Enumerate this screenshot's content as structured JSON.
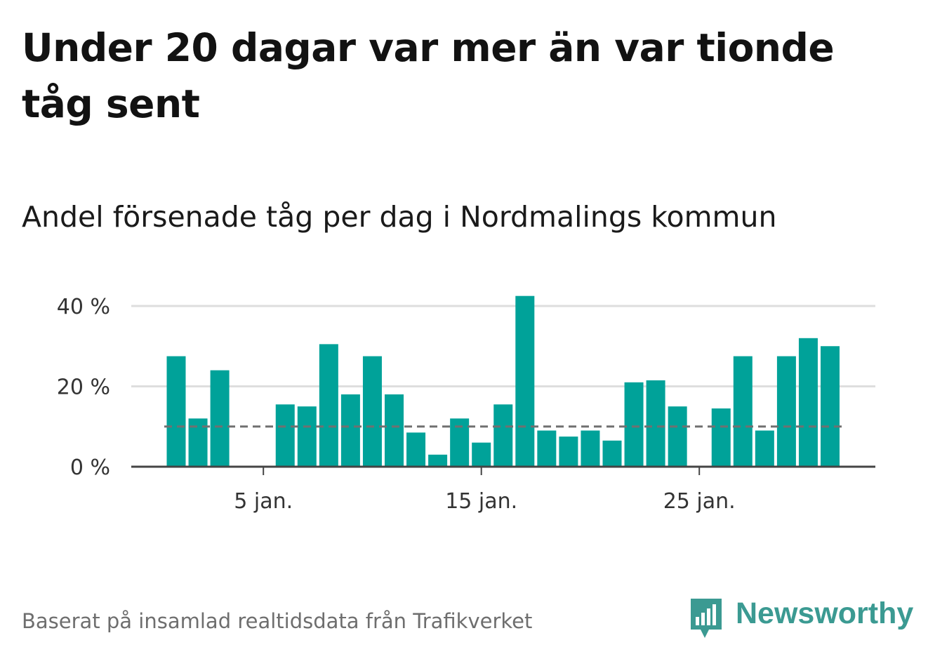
{
  "title": "Under 20 dagar var mer än var tionde tåg sent",
  "subtitle": "Andel försenade tåg per dag i Nordmalings kommun",
  "footnote": "Baserat på insamlad realtidsdata från Trafikverket",
  "brand": {
    "name": "Newsworthy",
    "color": "#3b9a92"
  },
  "colors": {
    "bar": "#00a299",
    "grid": "#dedede",
    "axis": "#444444",
    "reference": "#707070"
  },
  "chart_data": {
    "type": "bar",
    "x": [
      1,
      2,
      3,
      4,
      5,
      6,
      7,
      8,
      9,
      10,
      11,
      12,
      13,
      14,
      15,
      16,
      17,
      18,
      19,
      20,
      21,
      22,
      23,
      24,
      25,
      26,
      27,
      28,
      29,
      30,
      31
    ],
    "values": [
      27.5,
      12,
      24,
      0,
      0,
      15.5,
      15,
      30.5,
      18,
      27.5,
      18,
      8.5,
      3,
      12,
      6,
      15.5,
      42.5,
      9,
      7.5,
      9,
      6.5,
      21,
      21.5,
      15,
      0,
      14.5,
      27.5,
      9,
      27.5,
      32,
      30
    ],
    "reference_value": 10,
    "ylim": [
      0,
      40
    ],
    "yticks": [
      {
        "value": 0,
        "label": "0 %"
      },
      {
        "value": 20,
        "label": "20 %"
      },
      {
        "value": 40,
        "label": "40 %"
      }
    ],
    "xticks": [
      {
        "value": 5,
        "label": "5 jan."
      },
      {
        "value": 15,
        "label": "15 jan."
      },
      {
        "value": 25,
        "label": "25 jan."
      }
    ],
    "grid": true,
    "legend": "none"
  }
}
